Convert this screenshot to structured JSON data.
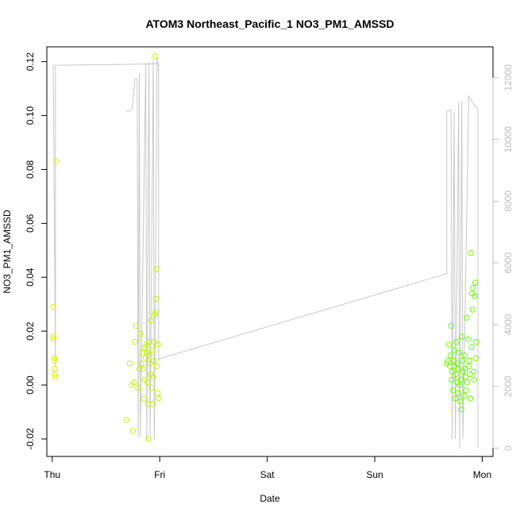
{
  "chart_data": {
    "type": "scatter",
    "title": "ATOM3 Northeast_Pacific_1 NO3_PM1_AMSSD",
    "xlabel": "Date",
    "ylabel": "NO3_PM1_AMSSD",
    "x_axis": {
      "unit": "days",
      "range": [
        -0.05,
        4.1
      ],
      "ticks": [
        {
          "value": 0,
          "label": "Thu"
        },
        {
          "value": 1,
          "label": "Fri"
        },
        {
          "value": 2,
          "label": "Sat"
        },
        {
          "value": 3,
          "label": "Sun"
        },
        {
          "value": 4,
          "label": "Mon"
        }
      ]
    },
    "y_axis_left": {
      "range": [
        -0.0265,
        0.1255
      ],
      "ticks": [
        -0.02,
        0.0,
        0.02,
        0.04,
        0.06,
        0.08,
        0.1,
        0.12
      ],
      "tick_labels": [
        "-0.02",
        "0.00",
        "0.02",
        "0.04",
        "0.06",
        "0.08",
        "0.10",
        "0.12"
      ]
    },
    "y_axis_right": {
      "range": [
        -270,
        13000
      ],
      "ticks": [
        0,
        2000,
        4000,
        6000,
        8000,
        10000,
        12000
      ],
      "tick_labels": [
        "0",
        "2000",
        "4000",
        "6000",
        "8000",
        "10000",
        "12000"
      ],
      "color": "#bfbfbf"
    },
    "series": [
      {
        "kind": "points",
        "axis": "left",
        "marker": "open-circle",
        "color_start": "#ddf000",
        "color_end": "#66ff00",
        "points": [
          [
            0.01,
            0.029
          ],
          [
            0.01,
            0.018
          ],
          [
            0.013,
            0.017
          ],
          [
            0.02,
            0.01
          ],
          [
            0.023,
            0.009
          ],
          [
            0.025,
            0.006
          ],
          [
            0.028,
            0.004
          ],
          [
            0.03,
            0.003
          ],
          [
            0.035,
            0.083
          ],
          [
            0.69,
            -0.013
          ],
          [
            0.72,
            0.008
          ],
          [
            0.74,
            0.0
          ],
          [
            0.75,
            -0.017
          ],
          [
            0.76,
            0.001
          ],
          [
            0.77,
            0.016
          ],
          [
            0.78,
            0.022
          ],
          [
            0.8,
            -0.001
          ],
          [
            0.81,
            0.006
          ],
          [
            0.82,
            0.019
          ],
          [
            0.83,
            0.008
          ],
          [
            0.84,
            0.012
          ],
          [
            0.845,
            0.006
          ],
          [
            0.85,
            -0.005
          ],
          [
            0.86,
            0.014
          ],
          [
            0.86,
            0.002
          ],
          [
            0.87,
            0.01
          ],
          [
            0.875,
            0.015
          ],
          [
            0.88,
            0.012
          ],
          [
            0.885,
            0.001
          ],
          [
            0.89,
            -0.007
          ],
          [
            0.895,
            -0.02
          ],
          [
            0.9,
            0.016
          ],
          [
            0.905,
            0.011
          ],
          [
            0.91,
            0.008
          ],
          [
            0.915,
            0.004
          ],
          [
            0.92,
            0.024
          ],
          [
            0.925,
            -0.001
          ],
          [
            0.93,
            0.013
          ],
          [
            0.935,
            -0.007
          ],
          [
            0.94,
            0.003
          ],
          [
            0.945,
            0.009
          ],
          [
            0.95,
            0.016
          ],
          [
            0.955,
            0.026
          ],
          [
            0.96,
            0.027
          ],
          [
            0.96,
            0.122
          ],
          [
            0.965,
            0.032
          ],
          [
            0.97,
            0.043
          ],
          [
            0.975,
            0.007
          ],
          [
            0.98,
            -0.003
          ],
          [
            0.985,
            0.015
          ],
          [
            0.99,
            -0.005
          ],
          [
            3.67,
            0.008
          ],
          [
            3.68,
            0.009
          ],
          [
            3.69,
            0.015
          ],
          [
            3.7,
            0.007
          ],
          [
            3.705,
            0.011
          ],
          [
            3.71,
            0.022
          ],
          [
            3.715,
            0.002
          ],
          [
            3.72,
            0.005
          ],
          [
            3.73,
            -0.002
          ],
          [
            3.735,
            0.009
          ],
          [
            3.74,
            0.013
          ],
          [
            3.745,
            0.007
          ],
          [
            3.75,
            -0.005
          ],
          [
            3.755,
            0.004
          ],
          [
            3.76,
            0.016
          ],
          [
            3.765,
            0.008
          ],
          [
            3.77,
            0.001
          ],
          [
            3.775,
            -0.003
          ],
          [
            3.78,
            0.006
          ],
          [
            3.785,
            0.012
          ],
          [
            3.79,
            0.0
          ],
          [
            3.795,
            -0.006
          ],
          [
            3.8,
            0.002
          ],
          [
            3.805,
            -0.009
          ],
          [
            3.81,
            0.018
          ],
          [
            3.815,
            0.009
          ],
          [
            3.82,
            0.005
          ],
          [
            3.83,
            -0.004
          ],
          [
            3.835,
            0.011
          ],
          [
            3.84,
            0.006
          ],
          [
            3.845,
            0.003
          ],
          [
            3.85,
            -0.002
          ],
          [
            3.855,
            0.025
          ],
          [
            3.86,
            0.001
          ],
          [
            3.87,
            0.017
          ],
          [
            3.875,
            0.007
          ],
          [
            3.88,
            0.009
          ],
          [
            3.885,
            0.004
          ],
          [
            3.89,
            -0.005
          ],
          [
            3.895,
            0.049
          ],
          [
            3.9,
            0.014
          ],
          [
            3.905,
            0.034
          ],
          [
            3.91,
            0.028
          ],
          [
            3.915,
            0.036
          ],
          [
            3.92,
            0.005
          ],
          [
            3.925,
            0.002
          ],
          [
            3.93,
            0.033
          ],
          [
            3.935,
            0.038
          ],
          [
            3.94,
            0.01
          ],
          [
            3.945,
            0.016
          ]
        ]
      },
      {
        "kind": "line",
        "axis": "right",
        "name": "",
        "color": "#c8c8c8",
        "points": [
          [
            0.005,
            12400
          ],
          [
            0.01,
            12400
          ],
          [
            0.03,
            2600
          ],
          [
            0.03,
            12400
          ],
          [
            0.99,
            12450
          ],
          [
            0.99,
            2850
          ],
          [
            1.0,
            2900
          ],
          [
            3.67,
            5650
          ],
          [
            3.67,
            10900
          ],
          [
            3.71,
            10950
          ],
          [
            3.72,
            300
          ],
          [
            3.74,
            10900
          ],
          [
            3.75,
            300
          ],
          [
            3.78,
            11200
          ],
          [
            3.79,
            0
          ],
          [
            3.81,
            11250
          ],
          [
            3.82,
            300
          ],
          [
            3.875,
            11400
          ],
          [
            3.93,
            11100
          ],
          [
            3.95,
            11050
          ],
          [
            3.96,
            10900
          ],
          [
            3.96,
            0
          ]
        ]
      },
      {
        "kind": "line",
        "axis": "right",
        "name": "",
        "color": "#c8c8c8",
        "points": [
          [
            0.69,
            10900
          ],
          [
            0.74,
            10950
          ],
          [
            0.75,
            11200
          ],
          [
            0.77,
            11950
          ],
          [
            0.79,
            11950
          ],
          [
            0.8,
            350
          ],
          [
            0.81,
            12150
          ],
          [
            0.82,
            350
          ],
          [
            0.87,
            12450
          ],
          [
            0.88,
            250
          ],
          [
            0.9,
            12500
          ],
          [
            0.91,
            350
          ],
          [
            0.94,
            12600
          ],
          [
            0.95,
            250
          ],
          [
            0.975,
            12650
          ],
          [
            0.985,
            12400
          ],
          [
            0.99,
            12400
          ]
        ]
      }
    ]
  }
}
